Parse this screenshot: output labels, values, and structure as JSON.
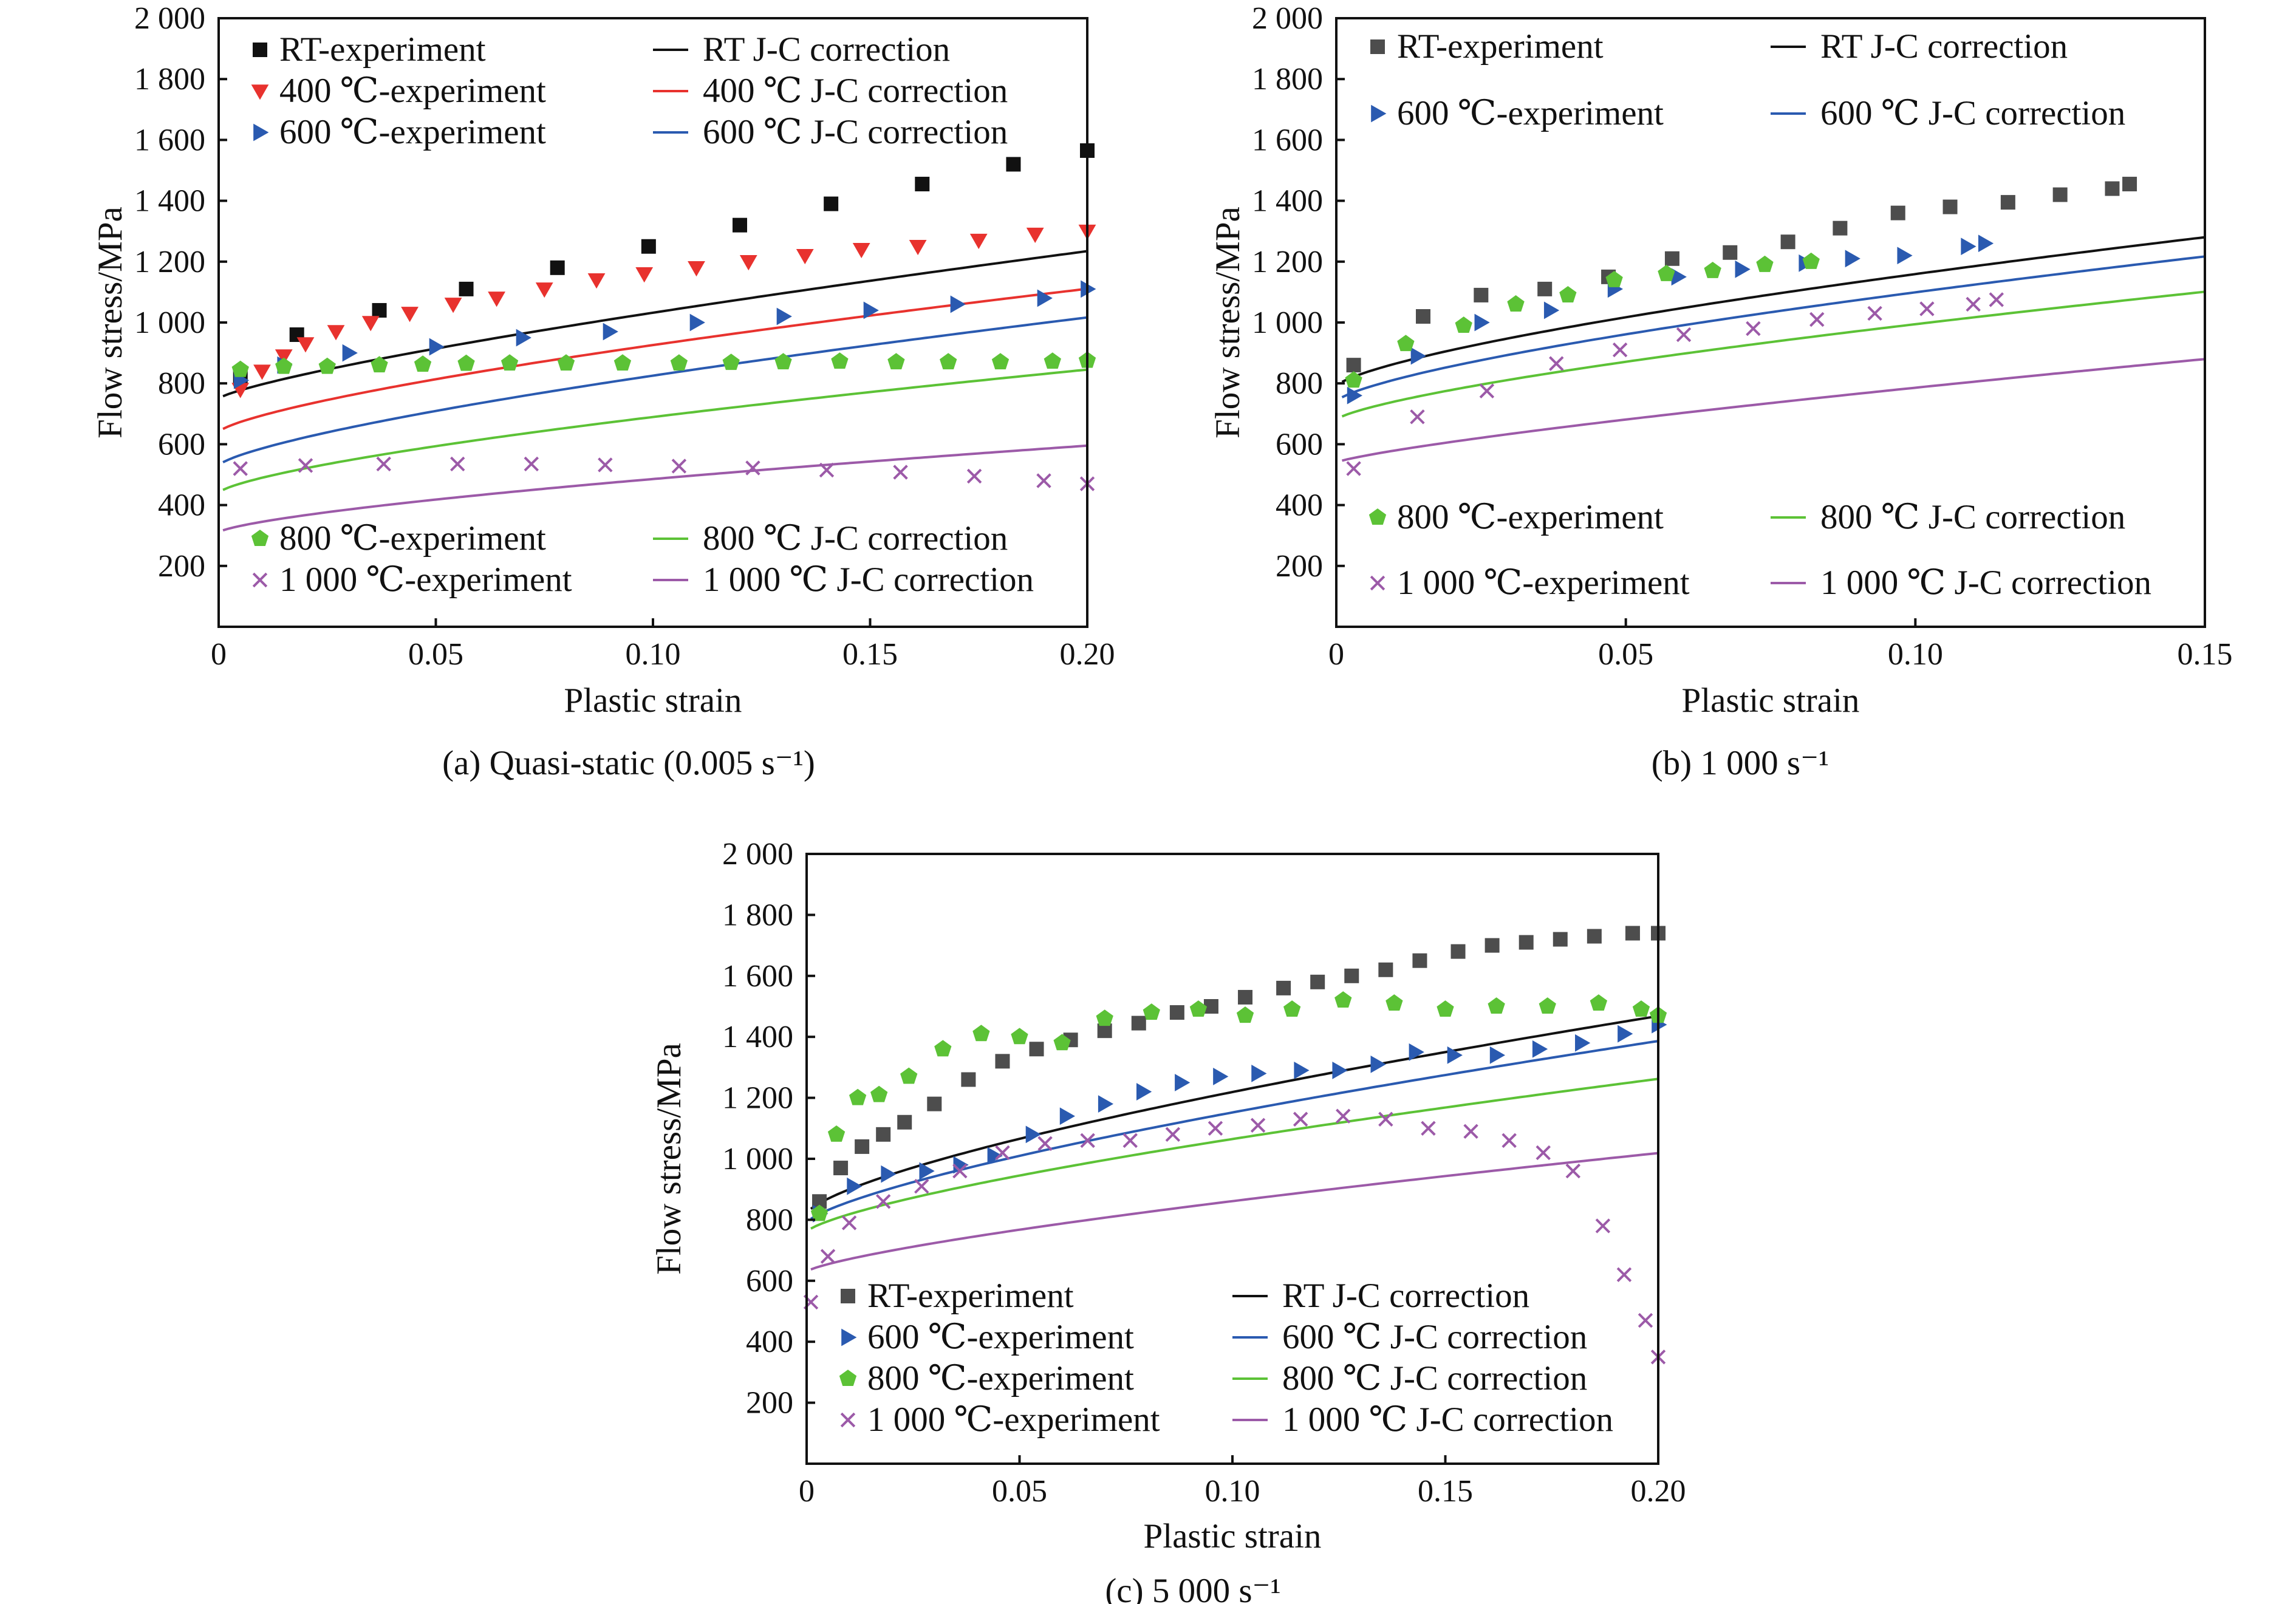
{
  "chart_data": [
    {
      "type": "scatter",
      "caption": "(a) Quasi-static (0.005 s⁻¹)",
      "xlabel": "Plastic strain",
      "ylabel": "Flow stress/MPa",
      "xlim": [
        0,
        0.2
      ],
      "ylim": [
        0,
        2000
      ],
      "xticks": [
        0,
        0.05,
        0.1,
        0.15,
        0.2
      ],
      "xtick_labels": [
        "0",
        "0.05",
        "0.10",
        "0.15",
        "0.20"
      ],
      "yticks": [
        200,
        400,
        600,
        800,
        1000,
        1200,
        1400,
        1600,
        1800,
        2000
      ],
      "ytick_labels": [
        "200",
        "400",
        "600",
        "800",
        "1 000",
        "1 200",
        "1 400",
        "1 600",
        "1 800",
        "2 000"
      ],
      "legend": [
        {
          "label": "RT-experiment",
          "series": 0
        },
        {
          "label": "RT J-C correction",
          "series": 1
        },
        {
          "label": "400 ℃-experiment",
          "series": 2
        },
        {
          "label": "400 ℃ J-C correction",
          "series": 3
        },
        {
          "label": "600 ℃-experiment",
          "series": 4
        },
        {
          "label": "600 ℃ J-C correction",
          "series": 5
        },
        {
          "label": "800 ℃-experiment",
          "series": 6
        },
        {
          "label": "800 ℃ J-C correction",
          "series": 7
        },
        {
          "label": "1 000 ℃-experiment",
          "series": 8
        },
        {
          "label": "1 000 ℃ J-C correction",
          "series": 9
        }
      ],
      "series": [
        {
          "kind": "marker",
          "marker": "square",
          "color": "#111111",
          "x": [
            0.005,
            0.018,
            0.037,
            0.057,
            0.078,
            0.099,
            0.12,
            0.141,
            0.162,
            0.183,
            0.2
          ],
          "y": [
            820,
            960,
            1040,
            1110,
            1180,
            1250,
            1320,
            1390,
            1455,
            1520,
            1565
          ]
        },
        {
          "kind": "line",
          "color": "#111111",
          "A": 750,
          "B": 1700,
          "n": 0.78,
          "x0": 0.001,
          "x1": 0.2
        },
        {
          "kind": "marker",
          "marker": "triangle-down",
          "color": "#e8322e",
          "x": [
            0.005,
            0.01,
            0.015,
            0.02,
            0.027,
            0.035,
            0.044,
            0.054,
            0.064,
            0.075,
            0.087,
            0.098,
            0.11,
            0.122,
            0.135,
            0.148,
            0.161,
            0.175,
            0.188,
            0.2
          ],
          "y": [
            780,
            840,
            890,
            930,
            970,
            1000,
            1030,
            1060,
            1080,
            1110,
            1140,
            1160,
            1180,
            1200,
            1220,
            1240,
            1250,
            1270,
            1290,
            1300
          ]
        },
        {
          "kind": "line",
          "color": "#e8322e",
          "A": 640,
          "B": 1500,
          "n": 0.72,
          "x0": 0.001,
          "x1": 0.2
        },
        {
          "kind": "marker",
          "marker": "triangle-right",
          "color": "#2a5ab0",
          "x": [
            0.005,
            0.015,
            0.03,
            0.05,
            0.07,
            0.09,
            0.11,
            0.13,
            0.15,
            0.17,
            0.19,
            0.2
          ],
          "y": [
            810,
            860,
            900,
            920,
            950,
            970,
            1000,
            1020,
            1040,
            1060,
            1080,
            1110
          ]
        },
        {
          "kind": "line",
          "color": "#2a5ab0",
          "A": 530,
          "B": 1550,
          "n": 0.72,
          "x0": 0.001,
          "x1": 0.2
        },
        {
          "kind": "marker",
          "marker": "pentagon",
          "color": "#5cc236",
          "x": [
            0.005,
            0.015,
            0.025,
            0.037,
            0.047,
            0.057,
            0.067,
            0.08,
            0.093,
            0.106,
            0.118,
            0.13,
            0.143,
            0.156,
            0.168,
            0.18,
            0.192,
            0.2
          ],
          "y": [
            845,
            855,
            855,
            860,
            862,
            865,
            866,
            866,
            866,
            866,
            868,
            870,
            872,
            870,
            870,
            870,
            872,
            875
          ]
        },
        {
          "kind": "line",
          "color": "#5cc236",
          "A": 440,
          "B": 1250,
          "n": 0.7,
          "x0": 0.001,
          "x1": 0.2
        },
        {
          "kind": "marker",
          "marker": "x",
          "color": "#9c5aa8",
          "x": [
            0.005,
            0.02,
            0.038,
            0.055,
            0.072,
            0.089,
            0.106,
            0.123,
            0.14,
            0.157,
            0.174,
            0.19,
            0.2
          ],
          "y": [
            520,
            530,
            535,
            535,
            535,
            532,
            528,
            522,
            515,
            508,
            495,
            480,
            470
          ]
        },
        {
          "kind": "line",
          "color": "#9c5aa8",
          "A": 310,
          "B": 880,
          "n": 0.7,
          "x0": 0.001,
          "x1": 0.2
        }
      ]
    },
    {
      "type": "scatter",
      "caption": "(b) 1 000 s⁻¹",
      "xlabel": "Plastic strain",
      "ylabel": "Flow stress/MPa",
      "xlim": [
        0,
        0.15
      ],
      "ylim": [
        0,
        2000
      ],
      "xticks": [
        0,
        0.05,
        0.1,
        0.15
      ],
      "xtick_labels": [
        "0",
        "0.05",
        "0.10",
        "0.15"
      ],
      "yticks": [
        200,
        400,
        600,
        800,
        1000,
        1200,
        1400,
        1600,
        1800,
        2000
      ],
      "ytick_labels": [
        "200",
        "400",
        "600",
        "800",
        "1 000",
        "1 200",
        "1 400",
        "1 600",
        "1 800",
        "2 000"
      ],
      "legend": [
        {
          "label": "RT-experiment",
          "series": 0
        },
        {
          "label": "RT J-C correction",
          "series": 1
        },
        {
          "label": "600 ℃-experiment",
          "series": 2
        },
        {
          "label": "600 ℃ J-C correction",
          "series": 3
        },
        {
          "label": "800 ℃-experiment",
          "series": 4
        },
        {
          "label": "800 ℃ J-C correction",
          "series": 5
        },
        {
          "label": "1 000 ℃-experiment",
          "series": 6
        },
        {
          "label": "1 000 ℃ J-C correction",
          "series": 7
        }
      ],
      "series": [
        {
          "kind": "marker",
          "marker": "square",
          "color": "#4d4d4d",
          "x": [
            0.003,
            0.015,
            0.025,
            0.036,
            0.047,
            0.058,
            0.068,
            0.078,
            0.087,
            0.097,
            0.106,
            0.116,
            0.125,
            0.134,
            0.137
          ],
          "y": [
            860,
            1020,
            1090,
            1110,
            1150,
            1210,
            1230,
            1265,
            1310,
            1360,
            1380,
            1395,
            1420,
            1440,
            1455
          ]
        },
        {
          "kind": "line",
          "color": "#111111",
          "A": 790,
          "B": 1850,
          "n": 0.7,
          "x0": 0.001,
          "x1": 0.15
        },
        {
          "kind": "marker",
          "marker": "triangle-right",
          "color": "#2a5ab0",
          "x": [
            0.003,
            0.014,
            0.025,
            0.037,
            0.048,
            0.059,
            0.07,
            0.081,
            0.089,
            0.098,
            0.109,
            0.112
          ],
          "y": [
            760,
            890,
            1000,
            1040,
            1110,
            1150,
            1175,
            1195,
            1210,
            1220,
            1250,
            1260
          ]
        },
        {
          "kind": "line",
          "color": "#2a5ab0",
          "A": 740,
          "B": 1800,
          "n": 0.7,
          "x0": 0.001,
          "x1": 0.15
        },
        {
          "kind": "marker",
          "marker": "pentagon",
          "color": "#5cc236",
          "x": [
            0.003,
            0.012,
            0.022,
            0.031,
            0.04,
            0.048,
            0.057,
            0.065,
            0.074,
            0.082
          ],
          "y": [
            810,
            930,
            990,
            1060,
            1090,
            1140,
            1160,
            1170,
            1190,
            1200
          ]
        },
        {
          "kind": "line",
          "color": "#5cc236",
          "A": 680,
          "B": 1650,
          "n": 0.72,
          "x0": 0.001,
          "x1": 0.15
        },
        {
          "kind": "marker",
          "marker": "x",
          "color": "#9c5aa8",
          "x": [
            0.003,
            0.014,
            0.026,
            0.038,
            0.049,
            0.06,
            0.072,
            0.083,
            0.093,
            0.102,
            0.11,
            0.114
          ],
          "y": [
            520,
            690,
            775,
            865,
            910,
            960,
            980,
            1010,
            1030,
            1045,
            1060,
            1075
          ]
        },
        {
          "kind": "line",
          "color": "#9c5aa8",
          "A": 540,
          "B": 1550,
          "n": 0.8,
          "x0": 0.001,
          "x1": 0.15
        }
      ]
    },
    {
      "type": "scatter",
      "caption": "(c) 5 000 s⁻¹",
      "xlabel": "Plastic strain",
      "ylabel": "Flow stress/MPa",
      "xlim": [
        0,
        0.2
      ],
      "ylim": [
        0,
        2000
      ],
      "xticks": [
        0,
        0.05,
        0.1,
        0.15,
        0.2
      ],
      "xtick_labels": [
        "0",
        "0.05",
        "0.10",
        "0.15",
        "0.20"
      ],
      "yticks": [
        200,
        400,
        600,
        800,
        1000,
        1200,
        1400,
        1600,
        1800,
        2000
      ],
      "ytick_labels": [
        "200",
        "400",
        "600",
        "800",
        "1 000",
        "1 200",
        "1 400",
        "1 600",
        "1 800",
        "2 000"
      ],
      "legend": [
        {
          "label": "RT-experiment",
          "series": 0
        },
        {
          "label": "RT J-C correction",
          "series": 1
        },
        {
          "label": "600 ℃-experiment",
          "series": 2
        },
        {
          "label": "600 ℃ J-C correction",
          "series": 3
        },
        {
          "label": "800 ℃-experiment",
          "series": 4
        },
        {
          "label": "800 ℃ J-C correction",
          "series": 5
        },
        {
          "label": "1 000 ℃-experiment",
          "series": 6
        },
        {
          "label": "1 000 ℃ J-C correction",
          "series": 7
        }
      ],
      "series": [
        {
          "kind": "marker",
          "marker": "square",
          "color": "#4d4d4d",
          "x": [
            0.003,
            0.008,
            0.013,
            0.018,
            0.023,
            0.03,
            0.038,
            0.046,
            0.054,
            0.062,
            0.07,
            0.078,
            0.087,
            0.095,
            0.103,
            0.112,
            0.12,
            0.128,
            0.136,
            0.144,
            0.153,
            0.161,
            0.169,
            0.177,
            0.185,
            0.194,
            0.2
          ],
          "y": [
            860,
            970,
            1040,
            1080,
            1120,
            1180,
            1260,
            1320,
            1360,
            1390,
            1420,
            1445,
            1480,
            1500,
            1530,
            1560,
            1580,
            1600,
            1620,
            1650,
            1680,
            1700,
            1710,
            1720,
            1730,
            1740,
            1740
          ]
        },
        {
          "kind": "line",
          "color": "#111111",
          "A": 820,
          "B": 2000,
          "n": 0.7,
          "x0": 0.001,
          "x1": 0.2
        },
        {
          "kind": "marker",
          "marker": "triangle-right",
          "color": "#2a5ab0",
          "x": [
            0.003,
            0.011,
            0.019,
            0.028,
            0.036,
            0.044,
            0.053,
            0.061,
            0.07,
            0.079,
            0.088,
            0.097,
            0.106,
            0.116,
            0.125,
            0.134,
            0.143,
            0.152,
            0.162,
            0.172,
            0.182,
            0.192,
            0.2
          ],
          "y": [
            820,
            910,
            950,
            960,
            980,
            1010,
            1080,
            1140,
            1180,
            1220,
            1250,
            1270,
            1280,
            1290,
            1290,
            1310,
            1350,
            1340,
            1340,
            1360,
            1380,
            1410,
            1440
          ]
        },
        {
          "kind": "line",
          "color": "#2a5ab0",
          "A": 790,
          "B": 1900,
          "n": 0.72,
          "x0": 0.001,
          "x1": 0.2
        },
        {
          "kind": "marker",
          "marker": "pentagon",
          "color": "#5cc236",
          "x": [
            0.003,
            0.007,
            0.012,
            0.017,
            0.024,
            0.032,
            0.041,
            0.05,
            0.06,
            0.07,
            0.081,
            0.092,
            0.103,
            0.114,
            0.126,
            0.138,
            0.15,
            0.162,
            0.174,
            0.186,
            0.196,
            0.2
          ],
          "y": [
            820,
            1080,
            1200,
            1210,
            1270,
            1360,
            1410,
            1400,
            1380,
            1460,
            1480,
            1490,
            1470,
            1490,
            1520,
            1510,
            1490,
            1500,
            1500,
            1510,
            1490,
            1470
          ]
        },
        {
          "kind": "line",
          "color": "#5cc236",
          "A": 760,
          "B": 1600,
          "n": 0.72,
          "x0": 0.001,
          "x1": 0.2
        },
        {
          "kind": "marker",
          "marker": "x",
          "color": "#9c5aa8",
          "x": [
            0.001,
            0.005,
            0.01,
            0.018,
            0.027,
            0.036,
            0.046,
            0.056,
            0.066,
            0.076,
            0.086,
            0.096,
            0.106,
            0.116,
            0.126,
            0.136,
            0.146,
            0.156,
            0.165,
            0.173,
            0.18,
            0.187,
            0.192,
            0.197,
            0.2
          ],
          "y": [
            530,
            680,
            790,
            860,
            910,
            960,
            1020,
            1050,
            1060,
            1060,
            1080,
            1100,
            1110,
            1130,
            1140,
            1130,
            1100,
            1090,
            1060,
            1020,
            960,
            780,
            620,
            470,
            350
          ]
        },
        {
          "kind": "line",
          "color": "#9c5aa8",
          "A": 630,
          "B": 1300,
          "n": 0.75,
          "x0": 0.001,
          "x1": 0.2
        }
      ]
    }
  ]
}
